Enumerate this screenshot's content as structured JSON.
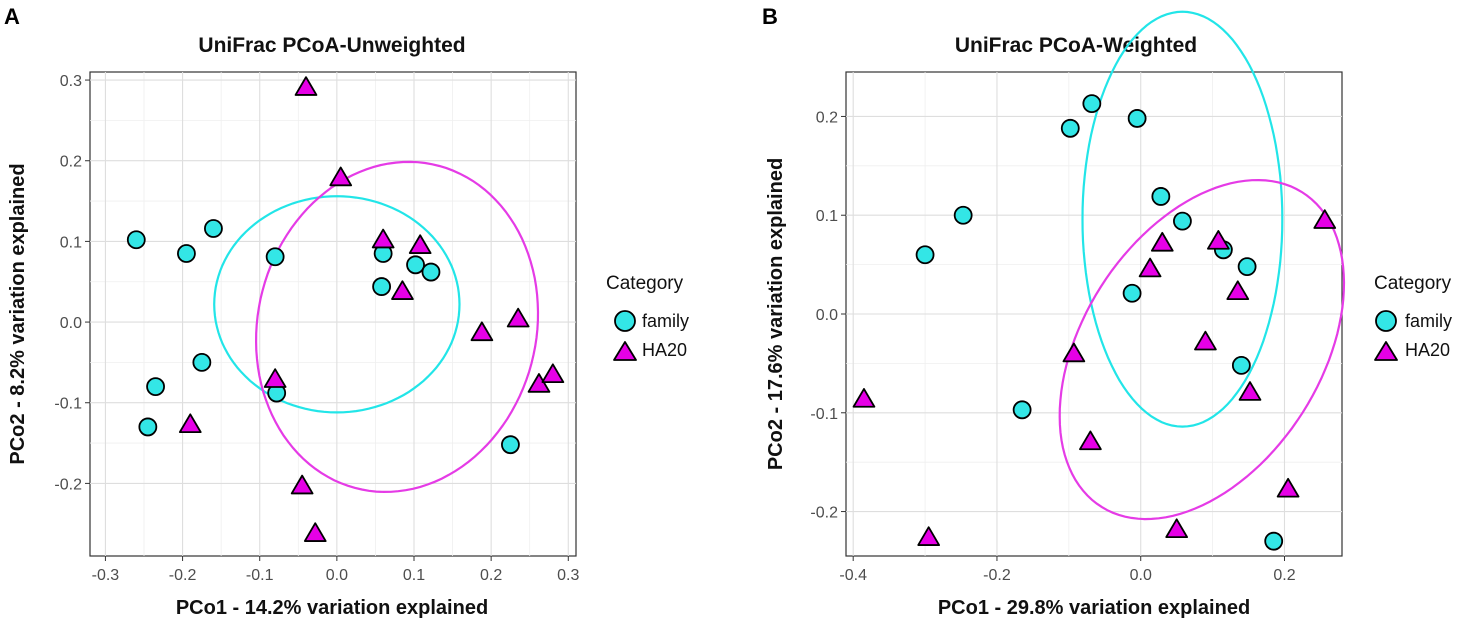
{
  "colors": {
    "family": "#33e6e6",
    "HA20": "#e600e6",
    "family_ellipse": "#22e5e8",
    "HA20_ellipse": "#e53be6",
    "outline": "#000000"
  },
  "chart_data": [
    {
      "type": "scatter",
      "panel_label": "A",
      "title": "UniFrac PCoA-Unweighted",
      "xlabel": "PCo1 - 14.2% variation explained",
      "ylabel": "PCo2 -  8.2% variation explained",
      "xlim": [
        -0.32,
        0.31
      ],
      "ylim": [
        -0.29,
        0.31
      ],
      "xticks": [
        -0.3,
        -0.2,
        -0.1,
        0.0,
        0.1,
        0.2,
        0.3
      ],
      "xtick_labels": [
        "-0.3",
        "-0.2",
        "-0.1",
        "0.0",
        "0.1",
        "0.2",
        "0.3"
      ],
      "yticks": [
        -0.2,
        -0.1,
        0.0,
        0.1,
        0.2,
        0.3
      ],
      "ytick_labels": [
        "-0.2",
        "-0.1",
        "0.0",
        "0.1",
        "0.2",
        "0.3"
      ],
      "grid": true,
      "legend": {
        "title": "Category",
        "placement": "right",
        "entries": [
          {
            "label": "family",
            "marker": "circle",
            "color_key": "family"
          },
          {
            "label": "HA20",
            "marker": "triangle",
            "color_key": "HA20"
          }
        ]
      },
      "series": [
        {
          "name": "family",
          "marker": "circle",
          "points": [
            [
              -0.26,
              0.102
            ],
            [
              -0.195,
              0.085
            ],
            [
              -0.16,
              0.116
            ],
            [
              -0.08,
              0.081
            ],
            [
              -0.175,
              -0.05
            ],
            [
              -0.235,
              -0.08
            ],
            [
              -0.245,
              -0.13
            ],
            [
              -0.078,
              -0.088
            ],
            [
              0.06,
              0.085
            ],
            [
              0.058,
              0.044
            ],
            [
              0.102,
              0.071
            ],
            [
              0.122,
              0.062
            ],
            [
              0.225,
              -0.152
            ]
          ]
        },
        {
          "name": "HA20",
          "marker": "triangle",
          "points": [
            [
              -0.04,
              0.29
            ],
            [
              0.005,
              0.178
            ],
            [
              0.06,
              0.101
            ],
            [
              0.108,
              0.094
            ],
            [
              0.085,
              0.037
            ],
            [
              0.235,
              0.003
            ],
            [
              0.188,
              -0.014
            ],
            [
              -0.08,
              -0.072
            ],
            [
              -0.19,
              -0.128
            ],
            [
              0.262,
              -0.078
            ],
            [
              0.28,
              -0.066
            ],
            [
              -0.045,
              -0.204
            ],
            [
              -0.028,
              -0.263
            ]
          ]
        }
      ],
      "ellipses": [
        {
          "group": "family",
          "center": [
            0.0,
            0.022
          ],
          "semi_axes": [
            0.159,
            0.134
          ],
          "rotation_deg": 0
        },
        {
          "group": "HA20",
          "center": [
            0.078,
            -0.006
          ],
          "semi_axes": [
            0.18,
            0.207
          ],
          "rotation_deg": -18
        }
      ]
    },
    {
      "type": "scatter",
      "panel_label": "B",
      "title": "UniFrac PCoA-Weighted",
      "xlabel": "PCo1 - 29.8% variation explained",
      "ylabel": "PCo2 - 17.6% variation explained",
      "xlim": [
        -0.41,
        0.28
      ],
      "ylim": [
        -0.245,
        0.245
      ],
      "xticks": [
        -0.4,
        -0.2,
        0.0,
        0.2
      ],
      "xtick_labels": [
        "-0.4",
        "-0.2",
        "0.0",
        "0.2"
      ],
      "yticks": [
        -0.2,
        -0.1,
        0.0,
        0.1,
        0.2
      ],
      "ytick_labels": [
        "-0.2",
        "-0.1",
        "0.0",
        "0.1",
        "0.2"
      ],
      "grid": true,
      "legend": {
        "title": "Category",
        "placement": "right",
        "entries": [
          {
            "label": "family",
            "marker": "circle",
            "color_key": "family"
          },
          {
            "label": "HA20",
            "marker": "triangle",
            "color_key": "HA20"
          }
        ]
      },
      "series": [
        {
          "name": "family",
          "marker": "circle",
          "points": [
            [
              -0.068,
              0.213
            ],
            [
              -0.005,
              0.198
            ],
            [
              -0.098,
              0.188
            ],
            [
              -0.247,
              0.1
            ],
            [
              -0.3,
              0.06
            ],
            [
              0.028,
              0.119
            ],
            [
              0.058,
              0.094
            ],
            [
              0.115,
              0.065
            ],
            [
              0.148,
              0.048
            ],
            [
              -0.012,
              0.021
            ],
            [
              0.14,
              -0.052
            ],
            [
              -0.165,
              -0.097
            ],
            [
              0.185,
              -0.23
            ]
          ]
        },
        {
          "name": "HA20",
          "marker": "triangle",
          "points": [
            [
              0.256,
              0.094
            ],
            [
              0.03,
              0.071
            ],
            [
              0.108,
              0.073
            ],
            [
              0.013,
              0.045
            ],
            [
              0.135,
              0.022
            ],
            [
              0.09,
              -0.029
            ],
            [
              -0.093,
              -0.041
            ],
            [
              0.152,
              -0.08
            ],
            [
              -0.385,
              -0.087
            ],
            [
              -0.07,
              -0.13
            ],
            [
              0.205,
              -0.178
            ],
            [
              -0.295,
              -0.227
            ],
            [
              0.05,
              -0.219
            ]
          ]
        }
      ],
      "ellipses": [
        {
          "group": "family",
          "center": [
            0.058,
            0.096
          ],
          "semi_axes": [
            0.21,
            0.139
          ],
          "rotation_deg": 90
        },
        {
          "group": "HA20",
          "center": [
            0.085,
            -0.036
          ],
          "semi_axes": [
            0.22,
            0.142
          ],
          "rotation_deg": 35
        }
      ]
    }
  ]
}
